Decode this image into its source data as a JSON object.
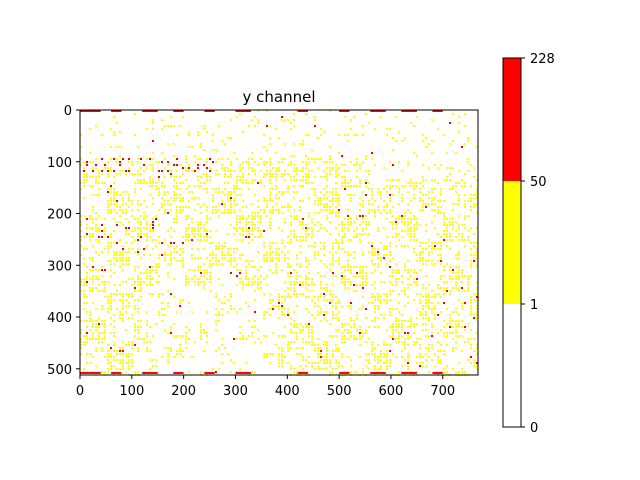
{
  "chart_data": {
    "type": "heatmap",
    "title": "y channel",
    "xlabel": "",
    "ylabel": "",
    "xlim": [
      0,
      768
    ],
    "ylim": [
      512,
      0
    ],
    "x_ticks": [
      0,
      100,
      200,
      300,
      400,
      500,
      600,
      700
    ],
    "y_ticks": [
      0,
      100,
      200,
      300,
      400,
      500
    ],
    "colorbar": {
      "boundaries": [
        0,
        1,
        50,
        228
      ],
      "colors": [
        "#ffffff",
        "#ffff00",
        "#ff0000"
      ],
      "tick_labels": [
        "228",
        "50",
        "1",
        "0"
      ]
    },
    "description_values": {
      "value_range": [
        0,
        228
      ]
    }
  },
  "colors": {
    "low": "#ffffff",
    "mid": "#ffff00",
    "high": "#ff0000"
  }
}
